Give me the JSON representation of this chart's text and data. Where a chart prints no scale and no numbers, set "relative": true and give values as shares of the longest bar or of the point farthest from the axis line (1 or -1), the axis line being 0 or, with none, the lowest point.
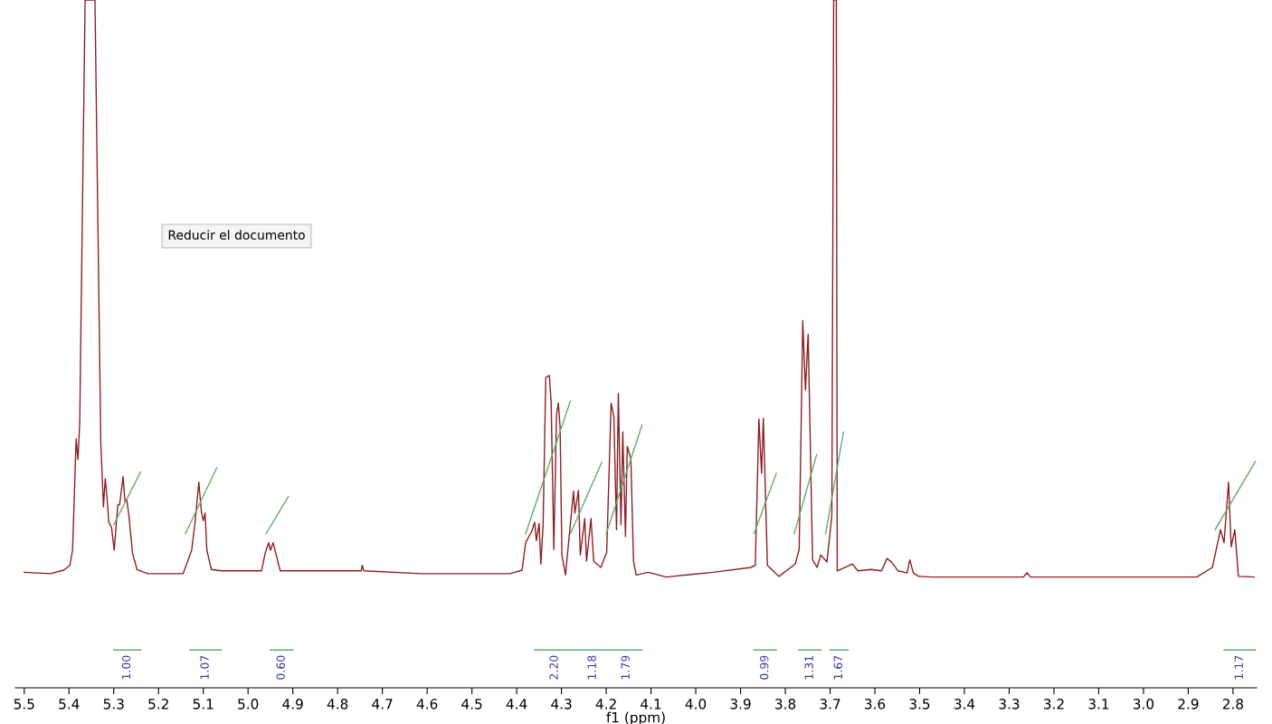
{
  "chart_data": {
    "type": "line",
    "relative": true,
    "xlabel": "f1 (ppm)",
    "xlim": [
      5.52,
      2.747
    ],
    "xticks": [
      5.5,
      5.4,
      5.3,
      5.2,
      5.1,
      {
        "value": 5,
        "label": "5.0"
      },
      4.9,
      4.8,
      4.7,
      4.6,
      4.5,
      4.4,
      4.3,
      4.2,
      4.1,
      {
        "value": 4,
        "label": "4.0"
      },
      3.9,
      3.8,
      3.7,
      3.6,
      3.5,
      3.4,
      3.3,
      3.2,
      3.1,
      {
        "value": 3,
        "label": "3.0"
      },
      2.9,
      2.8
    ],
    "grid": false,
    "tick_labels": "x",
    "line_style": "solid",
    "marker": "none",
    "series": [
      {
        "color": "#8b1f24",
        "x": [
          5.5,
          5.441,
          5.412,
          5.398,
          5.392,
          5.384,
          5.38,
          5.376,
          5.364,
          5.342,
          5.329,
          5.323,
          5.319,
          5.315,
          5.311,
          5.305,
          5.299,
          5.291,
          5.287,
          5.279,
          5.275,
          5.271,
          5.266,
          5.258,
          5.248,
          5.224,
          5.145,
          5.126,
          5.118,
          5.11,
          5.104,
          5.1,
          5.096,
          5.092,
          5.082,
          5.06,
          4.97,
          4.962,
          4.954,
          4.95,
          4.944,
          4.938,
          4.928,
          4.747,
          4.745,
          4.741,
          4.613,
          4.415,
          4.388,
          4.38,
          4.366,
          4.36,
          4.356,
          4.35,
          4.346,
          4.341,
          4.335,
          4.327,
          4.323,
          4.317,
          4.311,
          4.307,
          4.303,
          4.299,
          4.291,
          4.273,
          4.27,
          4.262,
          4.258,
          4.248,
          4.244,
          4.234,
          4.228,
          4.212,
          4.199,
          4.189,
          4.183,
          4.177,
          4.173,
          4.167,
          4.163,
          4.157,
          4.153,
          4.145,
          4.139,
          4.133,
          4.106,
          4.066,
          3.962,
          3.877,
          3.867,
          3.859,
          3.853,
          3.849,
          3.84,
          3.814,
          3.778,
          3.769,
          3.761,
          3.755,
          3.749,
          3.739,
          3.729,
          3.721,
          3.707,
          3.696,
          3.692,
          3.686,
          3.684,
          3.65,
          3.638,
          3.609,
          3.585,
          3.573,
          3.563,
          3.548,
          3.528,
          3.522,
          3.514,
          3.502,
          3.473,
          3.268,
          3.26,
          3.252,
          2.881,
          2.846,
          2.828,
          2.82,
          2.81,
          2.804,
          2.796,
          2.788,
          2.753
        ],
        "values": [
          0.168,
          0.166,
          0.171,
          0.178,
          0.2,
          0.362,
          0.332,
          0.386,
          1.0,
          1.0,
          0.358,
          0.263,
          0.304,
          0.276,
          0.241,
          0.233,
          0.2,
          0.266,
          0.266,
          0.307,
          0.271,
          0.274,
          0.249,
          0.195,
          0.172,
          0.166,
          0.166,
          0.2,
          0.243,
          0.299,
          0.254,
          0.243,
          0.254,
          0.2,
          0.172,
          0.17,
          0.17,
          0.195,
          0.211,
          0.2,
          0.211,
          0.195,
          0.17,
          0.17,
          0.178,
          0.17,
          0.166,
          0.166,
          0.171,
          0.211,
          0.228,
          0.241,
          0.214,
          0.239,
          0.18,
          0.237,
          0.451,
          0.454,
          0.414,
          0.201,
          0.397,
          0.414,
          0.379,
          0.193,
          0.164,
          0.286,
          0.254,
          0.287,
          0.193,
          0.246,
          0.184,
          0.246,
          0.184,
          0.175,
          0.197,
          0.414,
          0.395,
          0.23,
          0.428,
          0.237,
          0.372,
          0.22,
          0.351,
          0.333,
          0.184,
          0.164,
          0.168,
          0.161,
          0.168,
          0.175,
          0.178,
          0.391,
          0.312,
          0.392,
          0.178,
          0.162,
          0.18,
          0.201,
          0.534,
          0.433,
          0.514,
          0.186,
          0.175,
          0.193,
          0.183,
          0.251,
          1.0,
          1.0,
          0.17,
          0.18,
          0.17,
          0.172,
          0.17,
          0.188,
          0.183,
          0.17,
          0.167,
          0.186,
          0.167,
          0.162,
          0.161,
          0.161,
          0.167,
          0.161,
          0.161,
          0.175,
          0.23,
          0.211,
          0.299,
          0.205,
          0.23,
          0.162,
          0.161
        ]
      },
      {
        "color": "#5fae6e",
        "x": [
          5.3,
          5.24,
          null,
          5.14,
          5.07,
          null,
          4.96,
          4.91,
          null,
          4.38,
          4.28,
          null,
          4.28,
          4.21,
          null,
          4.2,
          4.12,
          null,
          3.87,
          3.82,
          null,
          3.78,
          3.73,
          null,
          3.71,
          3.67,
          null,
          2.84,
          2.75
        ],
        "values": [
          0.237,
          0.314,
          null,
          0.224,
          0.32,
          null,
          0.224,
          0.278,
          null,
          0.224,
          0.417,
          null,
          0.224,
          0.328,
          null,
          0.224,
          0.382,
          null,
          0.224,
          0.312,
          null,
          0.224,
          0.339,
          null,
          0.224,
          0.372,
          null,
          0.23,
          0.329
        ]
      },
      {
        "color": "#5fae6e",
        "x": [
          5.3,
          5.24,
          null,
          5.13,
          5.06,
          null,
          4.95,
          4.9,
          null,
          4.36,
          4.27,
          null,
          4.27,
          4.19,
          null,
          4.19,
          4.12,
          null,
          3.87,
          3.82,
          null,
          3.77,
          3.72,
          null,
          3.7,
          3.66,
          null,
          2.82,
          2.75
        ],
        "values": [
          0.055,
          0.055,
          null,
          0.055,
          0.055,
          null,
          0.055,
          0.055,
          null,
          0.055,
          0.055,
          null,
          0.055,
          0.055,
          null,
          0.055,
          0.055,
          null,
          0.055,
          0.055,
          null,
          0.055,
          0.055,
          null,
          0.055,
          0.055,
          null,
          0.055,
          0.055
        ]
      }
    ],
    "annotations": [
      "1.00",
      "1.07",
      "0.60",
      "2.20",
      "1.18",
      "1.79",
      "0.99",
      "1.31",
      "1.67",
      "1.17",
      "Reducir el documento"
    ]
  }
}
